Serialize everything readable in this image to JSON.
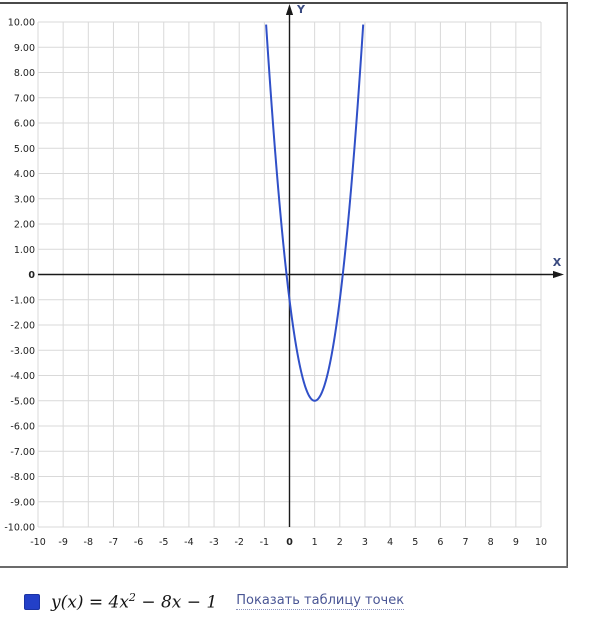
{
  "chart_data": {
    "type": "line",
    "title": "",
    "xlabel": "X",
    "ylabel": "Y",
    "xlim": [
      -10,
      10
    ],
    "ylim": [
      -10,
      10
    ],
    "grid_step": 1,
    "grid": true,
    "legend_position": "bottom",
    "x_tick_labels": [
      "-10",
      "-9",
      "-8",
      "-7",
      "-6",
      "-5",
      "-4",
      "-3",
      "-2",
      "-1",
      "0",
      "1",
      "2",
      "3",
      "4",
      "5",
      "6",
      "7",
      "8",
      "9",
      "10"
    ],
    "y_tick_labels": [
      "10.00",
      "9.00",
      "8.00",
      "7.00",
      "6.00",
      "5.00",
      "4.00",
      "3.00",
      "2.00",
      "1.00",
      "0",
      "-1.00",
      "-2.00",
      "-3.00",
      "-4.00",
      "-5.00",
      "-6.00",
      "-7.00",
      "-8.00",
      "-9.00",
      "-10.00"
    ],
    "series": [
      {
        "name": "y(x) = 4x^2 - 8x - 1",
        "color": "#3050c8",
        "curve_type": "quadratic",
        "coefficients": {
          "a": 4,
          "b": -8,
          "c": -1
        },
        "vertex": [
          1,
          -5
        ],
        "y_intercept": [
          0,
          -1
        ],
        "x_intercepts": [
          -0.118,
          2.118
        ],
        "sample_points": [
          [
            -0.94,
            10
          ],
          [
            -0.118,
            0
          ],
          [
            0,
            -1
          ],
          [
            0.5,
            -4
          ],
          [
            1,
            -5
          ],
          [
            1.5,
            -4
          ],
          [
            2,
            -1
          ],
          [
            2.118,
            0
          ],
          [
            2.94,
            10
          ]
        ]
      }
    ]
  },
  "legend": {
    "swatch_color": "#2340c8",
    "formula_pre": "y(x) = 4x",
    "formula_sup": "2",
    "formula_post": " − 8x − 1",
    "link_label": "Показать таблицу точек",
    "link_color": "#4a5695"
  },
  "style": {
    "grid_color": "#d9d9d9",
    "axis_color": "#1a1a1a",
    "tick_color": "#222222",
    "frame_color": "#4a4a4a",
    "divider_color": "#6b6b6b"
  }
}
